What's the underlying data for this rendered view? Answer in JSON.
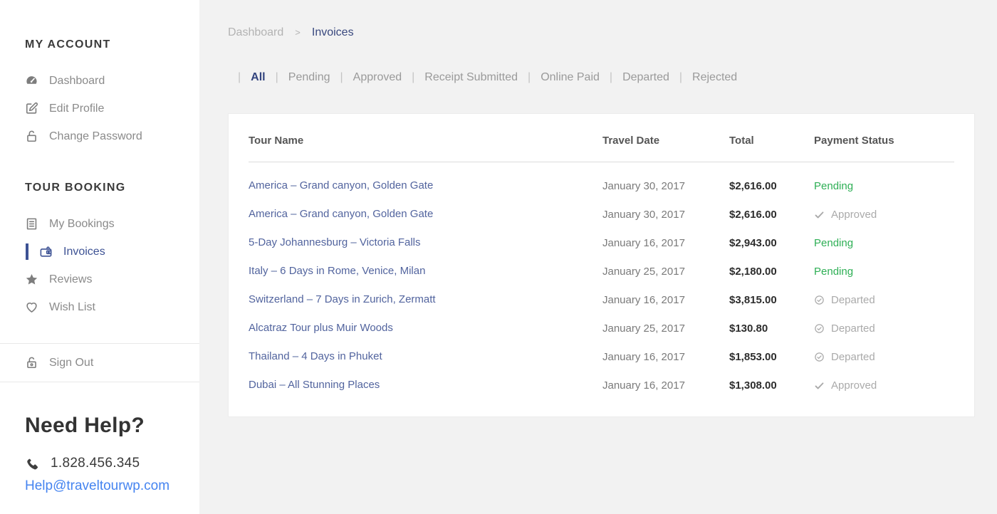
{
  "colors": {
    "accent_blue": "#3d5294",
    "tour_link_blue": "#52649e",
    "pending_green": "#2eaf55",
    "status_muted_gray": "#aaaaaa",
    "email_blue": "#4584f0",
    "main_background": "#f2f2f2",
    "sidebar_background": "#ffffff"
  },
  "sidebar": {
    "sections": [
      {
        "title": "MY ACCOUNT",
        "items": [
          {
            "label": "Dashboard",
            "icon": "dashboard-icon"
          },
          {
            "label": "Edit Profile",
            "icon": "edit-icon"
          },
          {
            "label": "Change Password",
            "icon": "lock-icon"
          }
        ]
      },
      {
        "title": "TOUR BOOKING",
        "items": [
          {
            "label": "My Bookings",
            "icon": "bookings-icon"
          },
          {
            "label": "Invoices",
            "icon": "wallet-icon",
            "state": "active"
          },
          {
            "label": "Reviews",
            "icon": "star-icon"
          },
          {
            "label": "Wish List",
            "icon": "heart-icon"
          }
        ]
      }
    ],
    "sign_out": {
      "label": "Sign Out",
      "icon": "unlock-icon"
    },
    "help": {
      "title": "Need Help?",
      "phone_icon": "phone-icon",
      "phone": "1.828.456.345",
      "email": "Help@traveltourwp.com"
    }
  },
  "breadcrumb": {
    "parent": "Dashboard",
    "separator": ">",
    "current": "Invoices"
  },
  "filters_separator": "|",
  "filters": [
    {
      "label": "All",
      "state": "active"
    },
    {
      "label": "Pending"
    },
    {
      "label": "Approved"
    },
    {
      "label": "Receipt Submitted"
    },
    {
      "label": "Online Paid"
    },
    {
      "label": "Departed"
    },
    {
      "label": "Rejected"
    }
  ],
  "invoices_table": {
    "columns": [
      "Tour Name",
      "Travel Date",
      "Total",
      "Payment Status"
    ],
    "rows": [
      {
        "tour": "America – Grand canyon, Golden Gate",
        "date": "January 30, 2017",
        "total": "$2,616.00",
        "status": "Pending",
        "status_class": "pending"
      },
      {
        "tour": "America – Grand canyon, Golden Gate",
        "date": "January 30, 2017",
        "total": "$2,616.00",
        "status": "Approved",
        "status_class": "muted",
        "status_icon": "check-icon"
      },
      {
        "tour": "5-Day Johannesburg – Victoria Falls",
        "date": "January 16, 2017",
        "total": "$2,943.00",
        "status": "Pending",
        "status_class": "pending"
      },
      {
        "tour": "Italy – 6 Days in Rome, Venice, Milan",
        "date": "January 25, 2017",
        "total": "$2,180.00",
        "status": "Pending",
        "status_class": "pending"
      },
      {
        "tour": "Switzerland – 7 Days in Zurich, Zermatt",
        "date": "January 16, 2017",
        "total": "$3,815.00",
        "status": "Departed",
        "status_class": "muted",
        "status_icon": "circle-check-icon"
      },
      {
        "tour": "Alcatraz Tour plus Muir Woods",
        "date": "January 25, 2017",
        "total": "$130.80",
        "status": "Departed",
        "status_class": "muted",
        "status_icon": "circle-check-icon"
      },
      {
        "tour": "Thailand – 4 Days in Phuket",
        "date": "January 16, 2017",
        "total": "$1,853.00",
        "status": "Departed",
        "status_class": "muted",
        "status_icon": "circle-check-icon"
      },
      {
        "tour": "Dubai – All Stunning Places",
        "date": "January 16, 2017",
        "total": "$1,308.00",
        "status": "Approved",
        "status_class": "muted",
        "status_icon": "check-icon"
      }
    ]
  }
}
